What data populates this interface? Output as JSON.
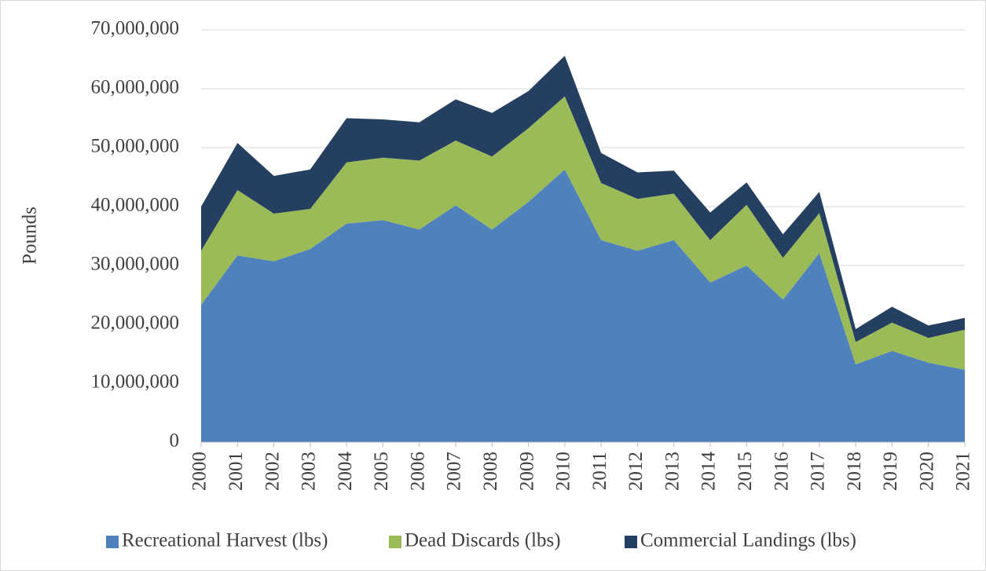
{
  "chart_data": {
    "type": "stacked_area",
    "y_label": "Pounds",
    "categories": [
      "2000",
      "2001",
      "2002",
      "2003",
      "2004",
      "2005",
      "2006",
      "2007",
      "2008",
      "2009",
      "2010",
      "2011",
      "2012",
      "2013",
      "2014",
      "2015",
      "2016",
      "2017",
      "2018",
      "2019",
      "2020",
      "2021"
    ],
    "series": [
      {
        "name": "Recreational Harvest (lbs)",
        "color": "#4f81bd",
        "values": [
          23300000,
          31700000,
          30700000,
          32800000,
          37100000,
          37700000,
          36100000,
          40200000,
          36100000,
          40800000,
          46300000,
          34300000,
          32500000,
          34300000,
          27100000,
          30000000,
          24200000,
          32100000,
          13200000,
          15500000,
          13500000,
          12300000
        ]
      },
      {
        "name": "Dead Discards (lbs)",
        "color": "#9bbb59",
        "values": [
          9200000,
          11100000,
          8100000,
          6800000,
          10400000,
          10600000,
          11700000,
          11000000,
          12400000,
          12500000,
          12400000,
          9700000,
          8800000,
          7900000,
          7200000,
          10300000,
          7100000,
          6800000,
          3800000,
          4800000,
          4200000,
          6800000
        ]
      },
      {
        "name": "Commercial Landings (lbs)",
        "color": "#243f60",
        "values": [
          7500000,
          8000000,
          6400000,
          6700000,
          7500000,
          6500000,
          6500000,
          7000000,
          7400000,
          6300000,
          6900000,
          5100000,
          4500000,
          3900000,
          4700000,
          3800000,
          4000000,
          3600000,
          2200000,
          2700000,
          2100000,
          2000000
        ]
      }
    ],
    "ylim": [
      0,
      70000000
    ],
    "yticks": [
      0,
      {
        "value": 10000000,
        "label": "10,000,000"
      },
      {
        "value": 20000000,
        "label": "20,000,000"
      },
      {
        "value": 30000000,
        "label": "30,000,000"
      },
      {
        "value": 40000000,
        "label": "40,000,000"
      },
      {
        "value": 50000000,
        "label": "50,000,000"
      },
      {
        "value": 60000000,
        "label": "60,000,000"
      },
      {
        "value": 70000000,
        "label": "70,000,000"
      }
    ],
    "grid": true,
    "legend": "bottom"
  }
}
